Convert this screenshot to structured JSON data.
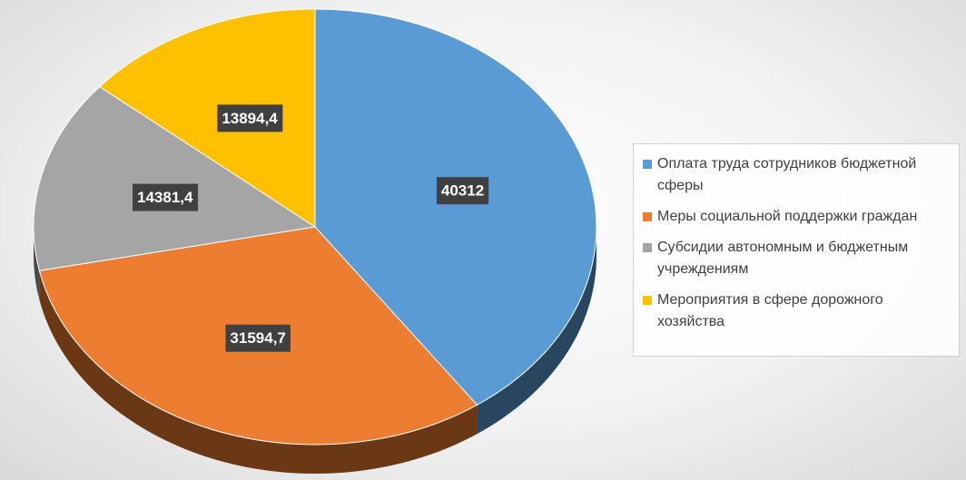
{
  "chart_data": {
    "type": "pie",
    "categories": [
      "Оплата труда сотрудников бюджетной сферы",
      "Меры социальной поддержки граждан",
      "Субсидии автономным и бюджетным учреждениям",
      "Мероприятия в сфере дорожного хозяйства"
    ],
    "values": [
      40312,
      31594.7,
      14381.4,
      13894.4
    ],
    "value_labels": [
      "40312",
      "31594,7",
      "14381,4",
      "13894,4"
    ],
    "colors": [
      "#5b9bd5",
      "#ed7d31",
      "#a5a5a5",
      "#ffc000"
    ],
    "legend": "right"
  }
}
